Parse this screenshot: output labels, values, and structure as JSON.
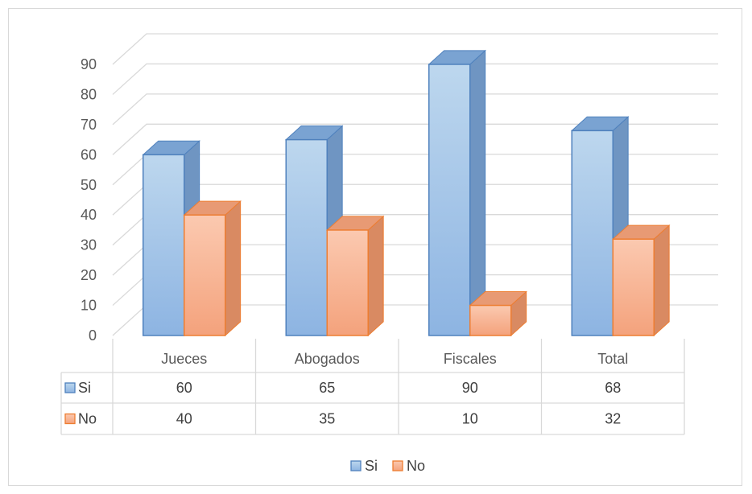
{
  "chart_data": {
    "type": "bar",
    "title": "",
    "xlabel": "",
    "ylabel": "",
    "categories": [
      "Jueces",
      "Abogados",
      "Fiscales",
      "Total"
    ],
    "series": [
      {
        "name": "Si",
        "values": [
          60,
          65,
          90,
          68
        ],
        "color": "#9dc3e6",
        "edge": "#4f81bd"
      },
      {
        "name": "No",
        "values": [
          40,
          35,
          10,
          32
        ],
        "color": "#f8b195",
        "edge": "#ed7d31"
      }
    ],
    "yticks": [
      "0",
      "10",
      "20",
      "30",
      "40",
      "50",
      "60",
      "70",
      "80",
      "90"
    ],
    "ylim": [
      0,
      90
    ],
    "grid": true,
    "data_table": true,
    "legend": "bottom"
  }
}
